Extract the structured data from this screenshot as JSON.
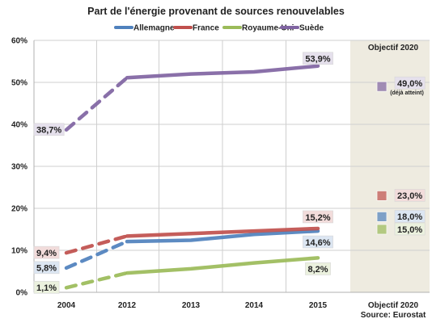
{
  "chart_data": {
    "type": "line",
    "title": "Part de l'énergie provenant de sources renouvelables",
    "categories": [
      "2004",
      "2012",
      "2013",
      "2014",
      "2015"
    ],
    "y_ticks": [
      "0%",
      "10%",
      "20%",
      "30%",
      "40%",
      "50%",
      "60%"
    ],
    "ylim": [
      0,
      60
    ],
    "grid": true,
    "legend_position": "top",
    "series": [
      {
        "name": "Allemagne",
        "color": "#4f81bd",
        "label_fill": "#dce6f2",
        "values": [
          5.8,
          12.1,
          12.4,
          13.8,
          14.6
        ],
        "value_labels": {
          "first": "5,8%",
          "last": "14,6%"
        },
        "objective": 18.0,
        "objective_label": "18,0%"
      },
      {
        "name": "France",
        "color": "#c0504d",
        "label_fill": "#f2dcdb",
        "values": [
          9.4,
          13.4,
          14.0,
          14.6,
          15.2
        ],
        "value_labels": {
          "first": "9,4%",
          "last": "15,2%"
        },
        "objective": 23.0,
        "objective_label": "23,0%"
      },
      {
        "name": "Royaume-Uni",
        "color": "#9bbb59",
        "label_fill": "#ebf1de",
        "values": [
          1.1,
          4.6,
          5.6,
          7.0,
          8.2
        ],
        "value_labels": {
          "first": "1,1%",
          "last": "8,2%"
        },
        "objective": 15.0,
        "objective_label": "15,0%"
      },
      {
        "name": "Suède",
        "color": "#8064a2",
        "label_fill": "#e5e0ec",
        "values": [
          38.7,
          51.1,
          52.0,
          52.5,
          53.9
        ],
        "value_labels": {
          "first": "38,7%",
          "last": "53,9%"
        },
        "objective": 49.0,
        "objective_label": "49,0%",
        "objective_note": "(déjà atteint)"
      }
    ],
    "objective_band_title": "Objectif 2020",
    "objective_axis_label": "Objectif 2020",
    "source": "Source: Eurostat"
  }
}
